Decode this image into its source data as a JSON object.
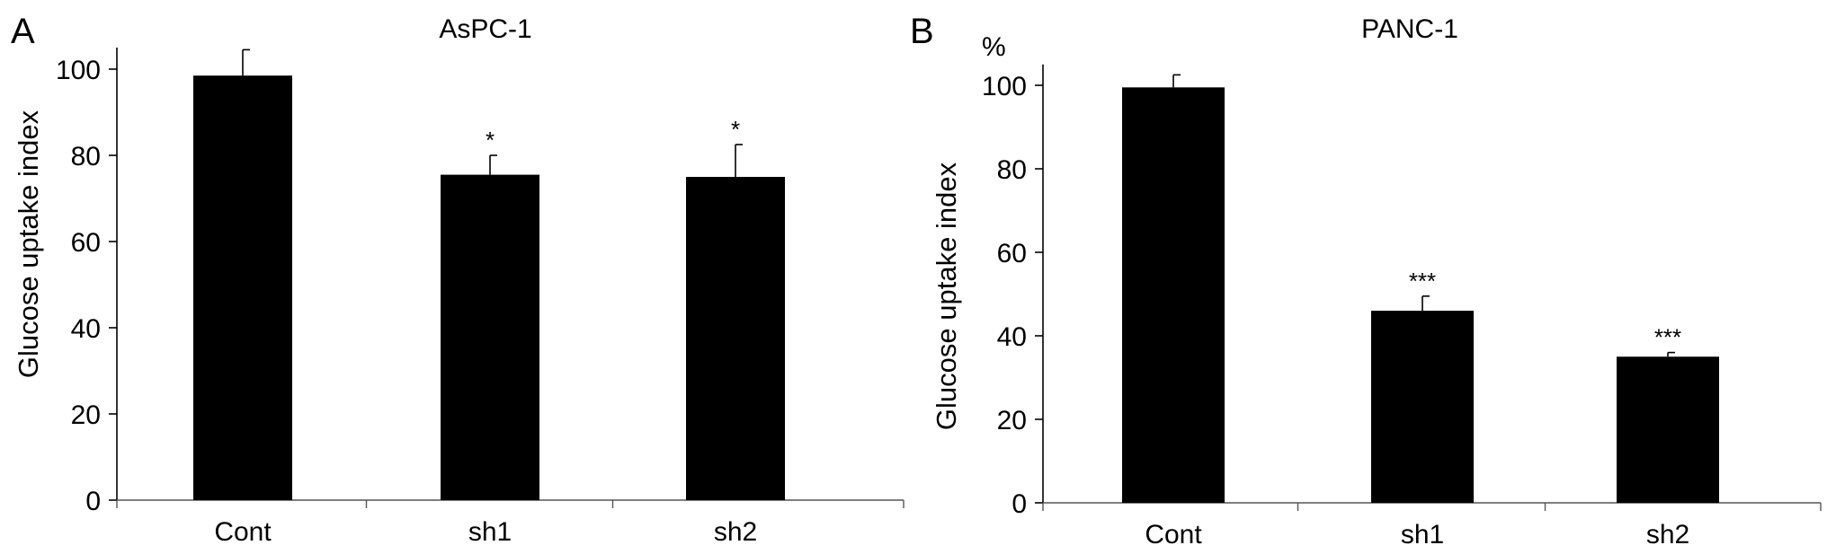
{
  "chart_data": [
    {
      "panel": "A",
      "type": "bar",
      "title": "AsPC-1",
      "ylabel": "Glucose uptake index",
      "unit": "",
      "categories": [
        "Cont",
        "sh1",
        "sh2"
      ],
      "values": [
        98.5,
        75.5,
        75
      ],
      "errors": [
        6,
        4.5,
        7.5
      ],
      "significance": [
        "",
        "*",
        "*"
      ],
      "ylim": [
        0,
        105
      ],
      "yticks": [
        "0",
        "20",
        "40",
        "60",
        "80",
        "100"
      ],
      "ytick_values": [
        0,
        20,
        40,
        60,
        80,
        100
      ],
      "grid": false,
      "bar_color": "#000000"
    },
    {
      "panel": "B",
      "type": "bar",
      "title": "PANC-1",
      "ylabel": "Glucose uptake index",
      "unit": "%",
      "categories": [
        "Cont",
        "sh1",
        "sh2"
      ],
      "values": [
        99.5,
        46,
        35
      ],
      "errors": [
        3,
        3.5,
        1
      ],
      "significance": [
        "",
        "***",
        "***"
      ],
      "ylim": [
        0,
        105
      ],
      "yticks": [
        "0",
        "20",
        "40",
        "60",
        "80",
        "100"
      ],
      "ytick_values": [
        0,
        20,
        40,
        60,
        80,
        100
      ],
      "grid": false,
      "bar_color": "#000000"
    }
  ]
}
